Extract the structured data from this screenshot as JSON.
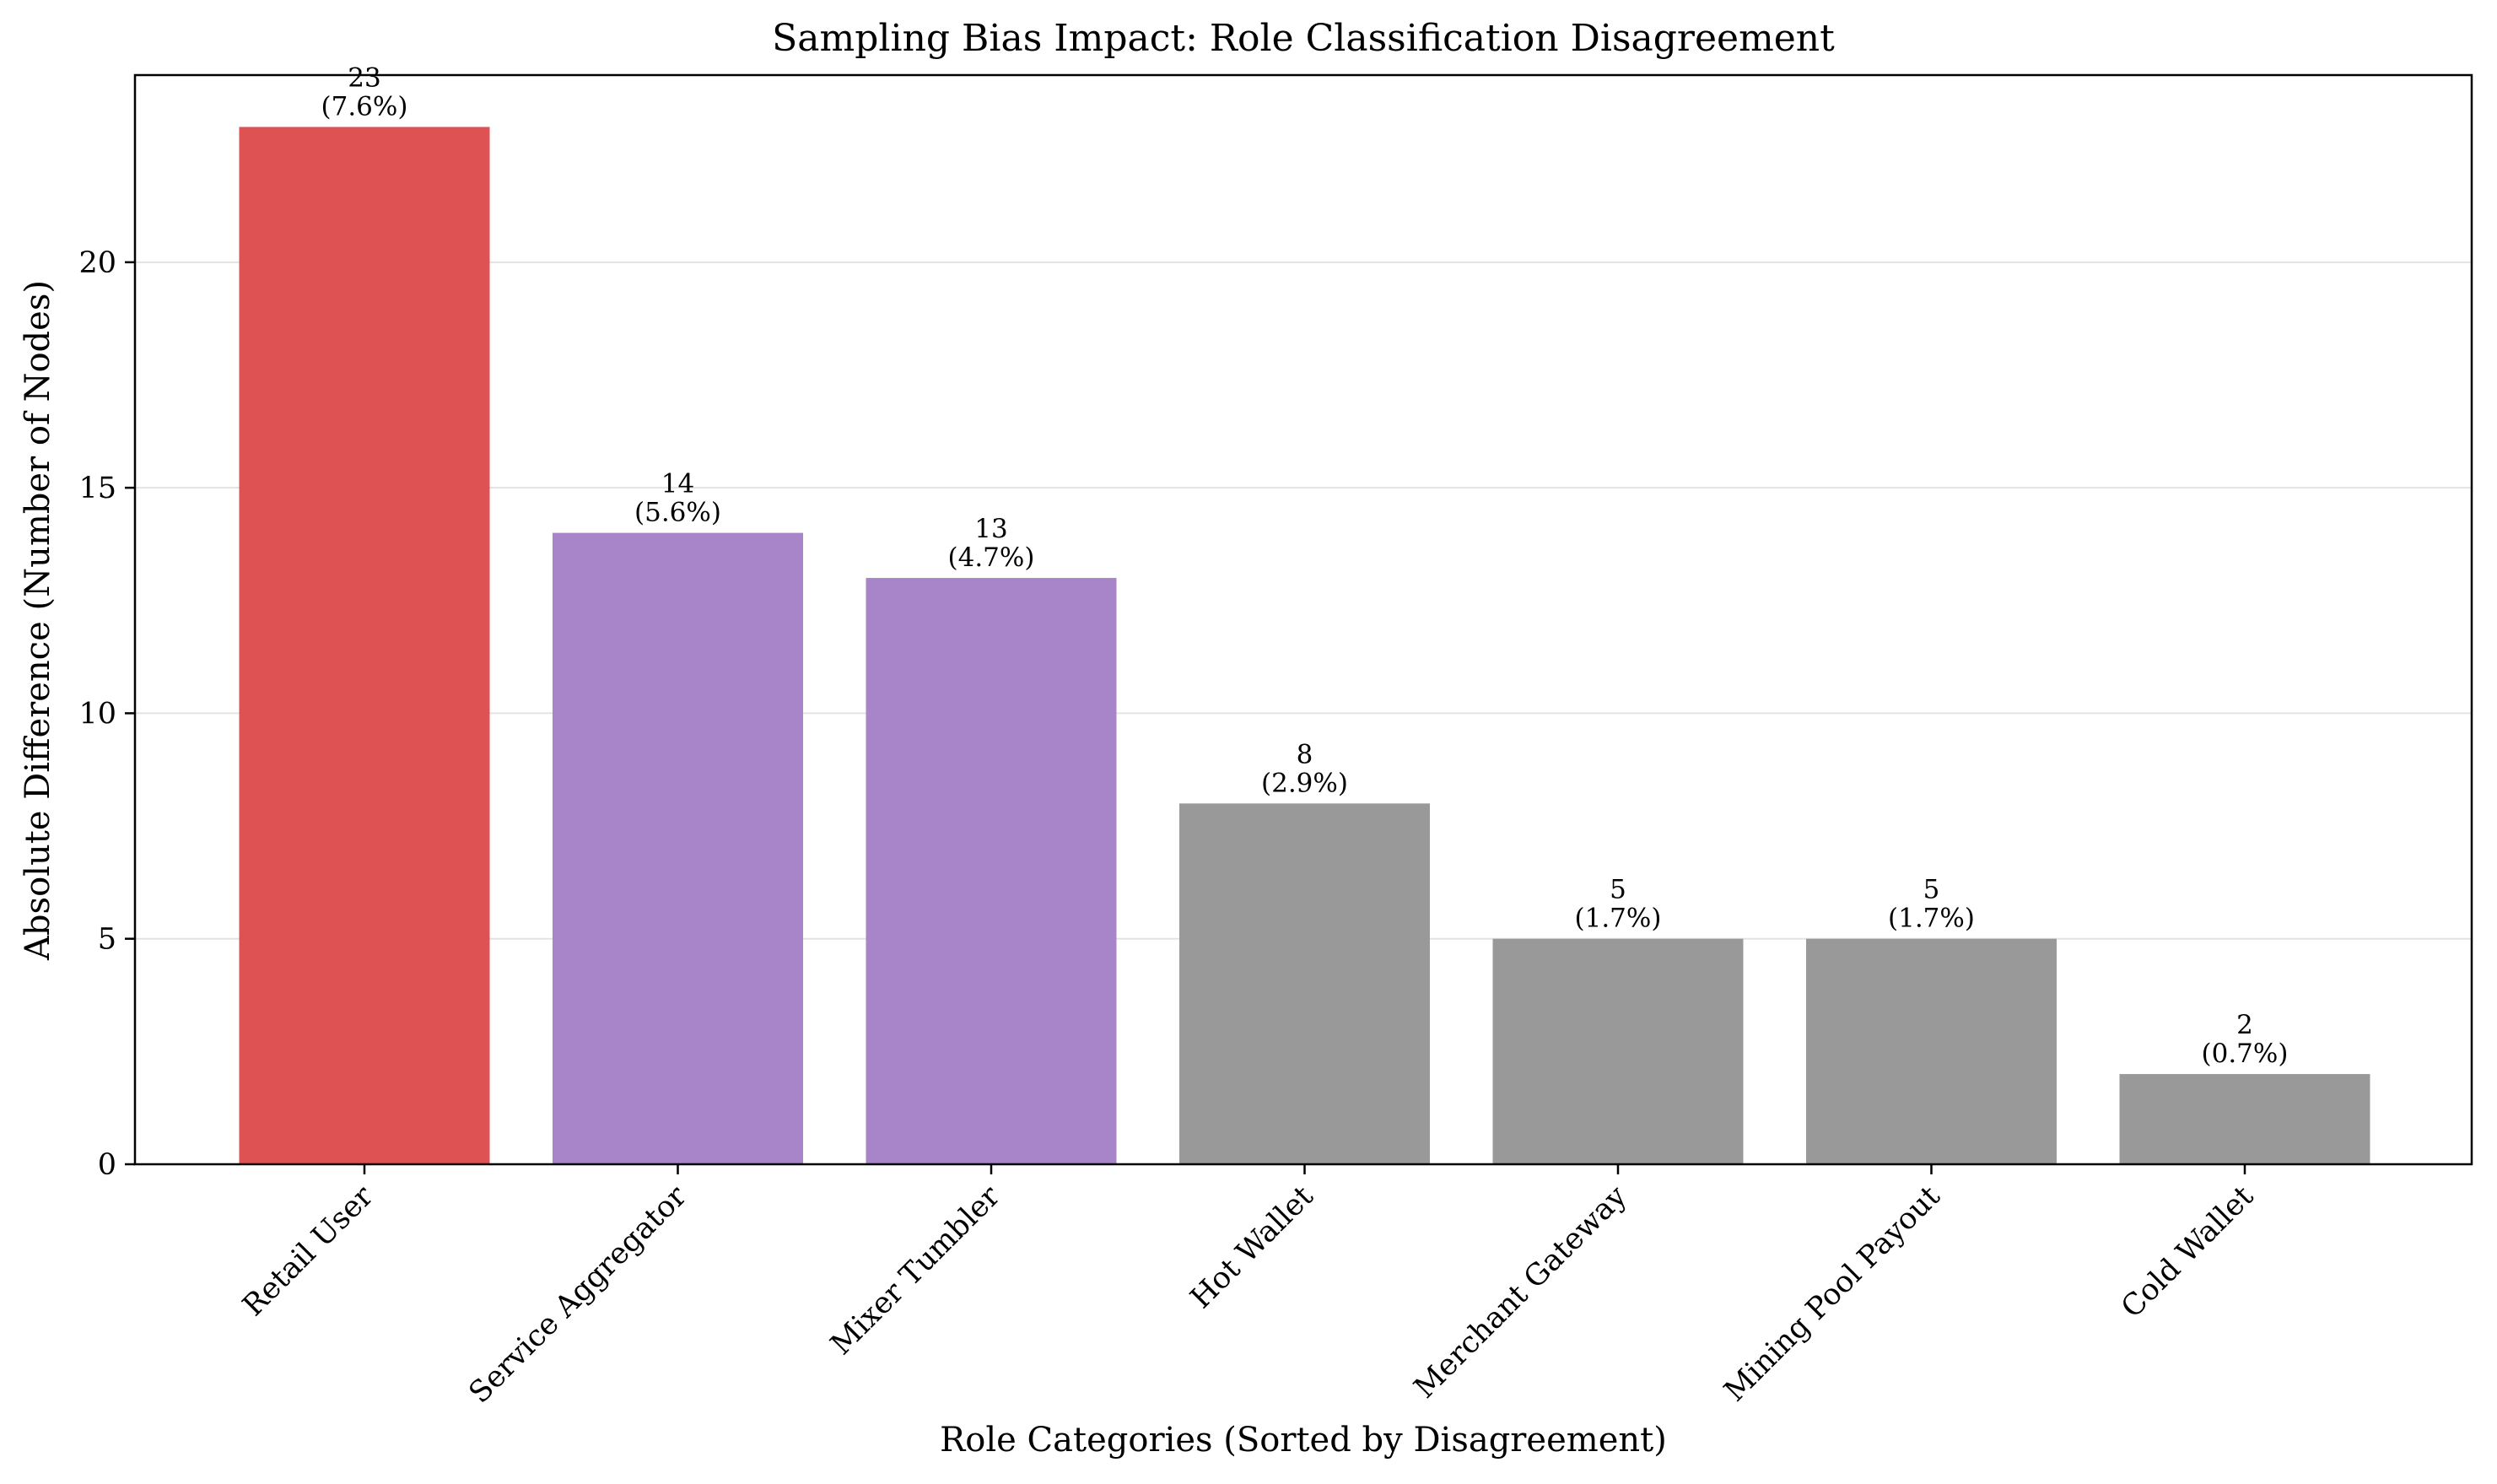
{
  "chart_data": {
    "type": "bar",
    "title": "Sampling Bias Impact: Role Classification Disagreement",
    "xlabel": "Role Categories (Sorted by Disagreement)",
    "ylabel": "Absolute Difference (Number of Nodes)",
    "ylim": [
      0,
      24.15
    ],
    "yticks": [
      0,
      5,
      10,
      15,
      20
    ],
    "grid": "y-only",
    "categories": [
      "Retail User",
      "Service Aggregator",
      "Mixer Tumbler",
      "Hot Wallet",
      "Merchant Gateway",
      "Mining Pool Payout",
      "Cold Wallet"
    ],
    "values": [
      23,
      14,
      13,
      8,
      5,
      5,
      2
    ],
    "percent_labels": [
      "(7.6%)",
      "(5.6%)",
      "(4.7%)",
      "(2.9%)",
      "(1.7%)",
      "(1.7%)",
      "(0.7%)"
    ],
    "bar_colors": [
      "#de5254",
      "#a785c8",
      "#a785c8",
      "#999999",
      "#999999",
      "#999999",
      "#999999"
    ]
  }
}
